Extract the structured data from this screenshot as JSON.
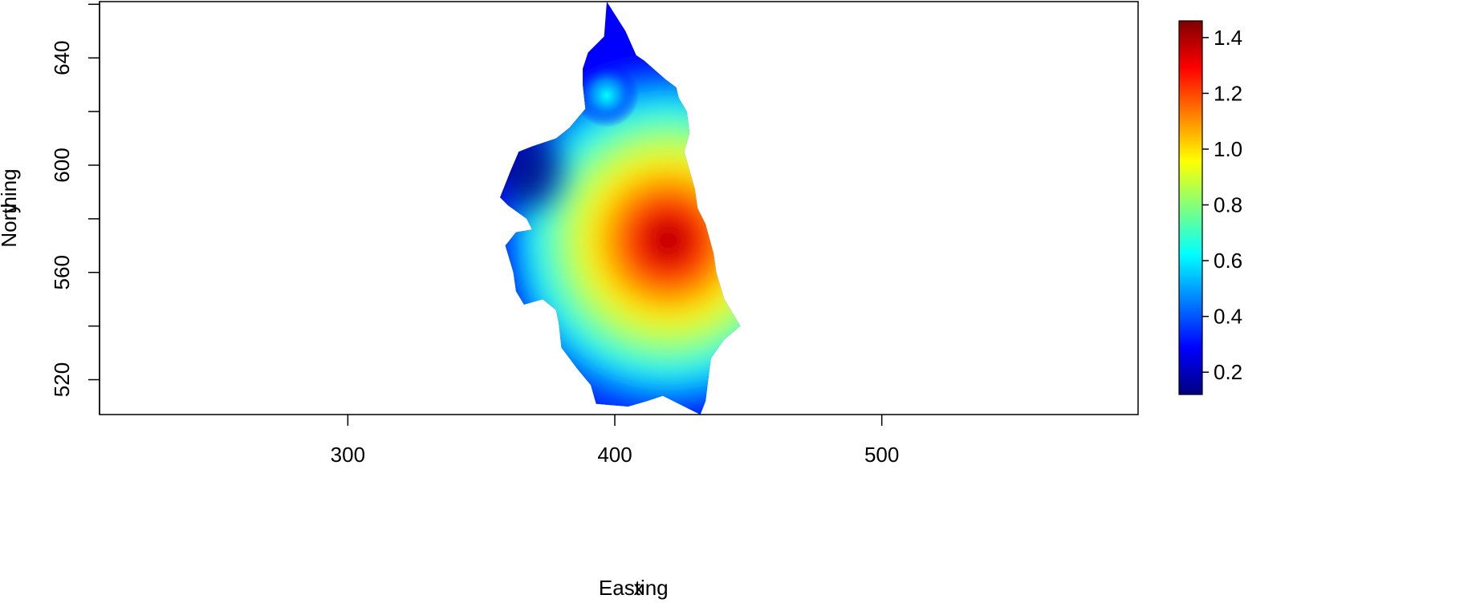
{
  "chart_data": {
    "type": "heatmap",
    "xlabel": "Easting",
    "ylabel": "Northing",
    "overlap_labels": {
      "x": "x",
      "y": "y"
    },
    "x_ticks": [
      300,
      400,
      500
    ],
    "y_ticks": [
      520,
      560,
      600,
      640
    ],
    "xlim": [
      207,
      596
    ],
    "ylim": [
      507,
      661
    ],
    "colorbar": {
      "ticks": [
        0.2,
        0.4,
        0.6,
        0.8,
        1.0,
        1.2,
        1.4
      ],
      "tick_labels": [
        "0.2",
        "0.4",
        "0.6",
        "0.8",
        "1.0",
        "1.2",
        "1.4"
      ],
      "range": [
        0.12,
        1.46
      ],
      "colors": [
        "#00007f",
        "#0000ff",
        "#007fff",
        "#00ffff",
        "#7fff7f",
        "#ffff00",
        "#ff7f00",
        "#ff0000",
        "#7f0000"
      ]
    },
    "region_outline": [
      [
        397,
        661
      ],
      [
        404,
        650
      ],
      [
        408,
        641
      ],
      [
        411,
        639
      ],
      [
        419,
        632
      ],
      [
        423,
        629
      ],
      [
        424,
        625
      ],
      [
        427,
        620
      ],
      [
        428,
        612
      ],
      [
        426,
        605
      ],
      [
        428,
        598
      ],
      [
        430,
        591
      ],
      [
        431,
        584
      ],
      [
        434,
        578
      ],
      [
        437,
        567
      ],
      [
        438,
        560
      ],
      [
        441,
        550
      ],
      [
        447,
        540
      ],
      [
        441,
        535
      ],
      [
        436,
        528
      ],
      [
        435,
        520
      ],
      [
        434,
        512
      ],
      [
        432,
        507
      ],
      [
        426,
        510
      ],
      [
        418,
        514
      ],
      [
        412,
        512
      ],
      [
        405,
        510
      ],
      [
        393,
        511
      ],
      [
        391,
        518
      ],
      [
        386,
        524
      ],
      [
        380,
        532
      ],
      [
        379,
        541
      ],
      [
        378,
        546
      ],
      [
        373,
        550
      ],
      [
        366,
        548
      ],
      [
        363,
        553
      ],
      [
        362,
        560
      ],
      [
        359,
        570
      ],
      [
        363,
        575
      ],
      [
        369,
        576
      ],
      [
        367,
        580
      ],
      [
        360,
        585
      ],
      [
        357,
        588
      ],
      [
        361,
        598
      ],
      [
        364,
        605
      ],
      [
        369,
        607
      ],
      [
        378,
        610
      ],
      [
        383,
        614
      ],
      [
        389,
        621
      ],
      [
        388,
        630
      ],
      [
        388,
        636
      ],
      [
        390,
        642
      ],
      [
        396,
        648
      ],
      [
        397,
        661
      ]
    ],
    "field_peaks": [
      {
        "x": 420,
        "y": 572,
        "value": 1.43
      },
      {
        "x": 397,
        "y": 626,
        "value": 0.55
      },
      {
        "x": 368,
        "y": 598,
        "value": 0.18
      }
    ]
  }
}
